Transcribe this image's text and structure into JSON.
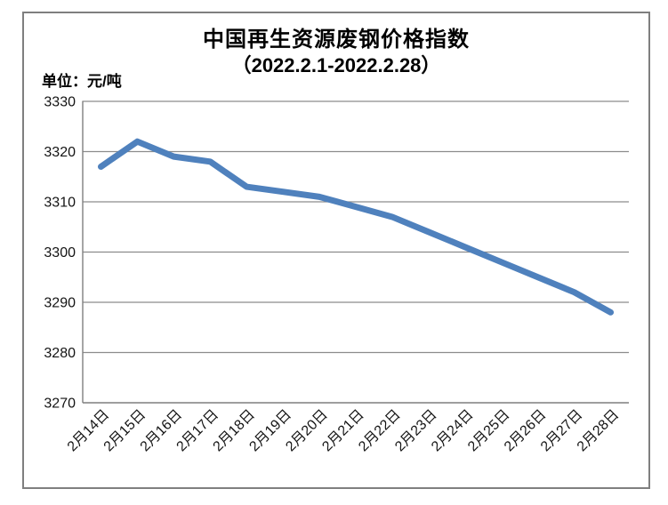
{
  "chart": {
    "title": "中国再生资源废钢价格指数",
    "subtitle": "（2022.2.1-2022.2.28）",
    "unit_label": "单位：元/吨"
  },
  "chart_data": {
    "type": "line",
    "title": "中国再生资源废钢价格指数（2022.2.1-2022.2.28）",
    "unit": "元/吨",
    "categories": [
      "2月14日",
      "2月15日",
      "2月16日",
      "2月17日",
      "2月18日",
      "2月19日",
      "2月20日",
      "2月21日",
      "2月22日",
      "2月23日",
      "2月24日",
      "2月25日",
      "2月26日",
      "2月27日",
      "2月28日"
    ],
    "series": [
      {
        "name": "中国再生资源废钢价格指数",
        "values": [
          3317,
          3322,
          3319,
          3318,
          3313,
          3312,
          3311,
          3309,
          3307,
          3304,
          3301,
          3298,
          3295,
          3292,
          3288
        ]
      }
    ],
    "ylim": [
      3270,
      3330
    ],
    "yticks": [
      3330,
      3320,
      3310,
      3300,
      3290,
      3280,
      3270
    ],
    "grid": true,
    "legend_position": "none",
    "line_color": "#4F81BD",
    "grid_color": "#8C8C8C",
    "axis_color": "#7F7F7F",
    "frame_color": "#7F7F7F",
    "text_color": "#141414"
  }
}
